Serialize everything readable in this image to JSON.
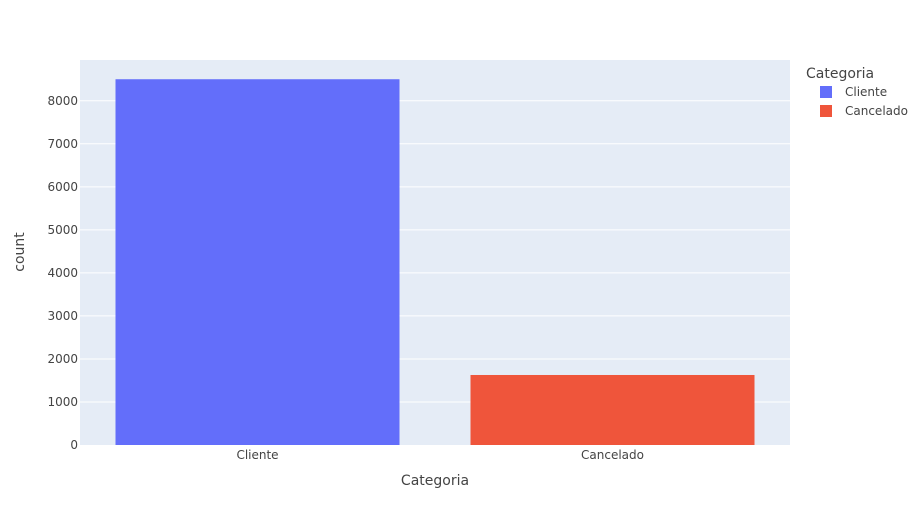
{
  "chart_data": {
    "type": "bar",
    "categories": [
      "Cliente",
      "Cancelado"
    ],
    "series": [
      {
        "name": "Cliente",
        "category": "Cliente",
        "value": 8500,
        "color": "#636efa"
      },
      {
        "name": "Cancelado",
        "category": "Cancelado",
        "value": 1627,
        "color": "#ef553b"
      }
    ],
    "xlabel": "Categoria",
    "ylabel": "count",
    "ylim": [
      0,
      8947
    ],
    "yticks": [
      0,
      1000,
      2000,
      3000,
      4000,
      5000,
      6000,
      7000,
      8000
    ],
    "grid": true,
    "legend_title": "Categoria",
    "legend_position": "top-right",
    "plot_background": "#e5ecf6"
  }
}
